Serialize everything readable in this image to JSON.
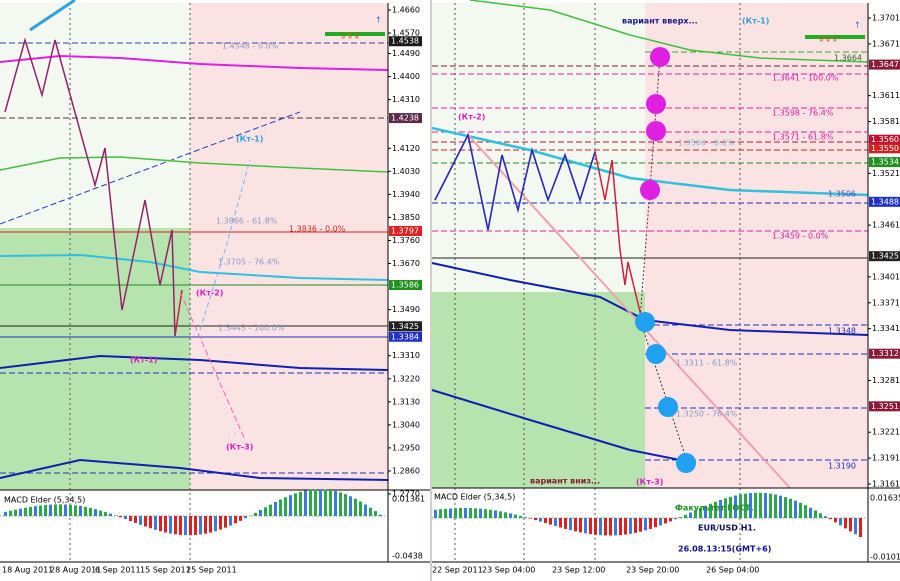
{
  "left": {
    "price_axis": [
      "1.4660",
      "1.4570",
      "1.4490",
      "1.4400",
      "1.4310",
      "1.4120",
      "1.4030",
      "1.3940",
      "1.3850",
      "1.3760",
      "1.3670",
      "1.3490",
      "1.3310",
      "1.3220",
      "1.3130",
      "1.3040",
      "1.2950",
      "1.2860",
      "1.2770"
    ],
    "price_markers": [
      {
        "label": "1.4538",
        "color": "#1a1a1a"
      },
      {
        "label": "1.4238",
        "color": "#5a2a4a"
      },
      {
        "label": "1.3797",
        "color": "#e02020"
      },
      {
        "label": "1.3586",
        "color": "#1f8f1f"
      },
      {
        "label": "1.3425",
        "color": "#222222"
      },
      {
        "label": "1.3384",
        "color": "#2030c0"
      }
    ],
    "annotations": [
      "1.4548 - 0.0%",
      "1.3866 - 61.8%",
      "1.3836 - 0.0%",
      "1.3705 - 76.4%",
      "1.3443 - 100.0%",
      "(Кт-1)",
      "(Кт-2)",
      "(Кт-1)",
      "(Кт-3)"
    ],
    "macd": {
      "title": "MACD Elder (5,34,5)",
      "levels": [
        "0.01361",
        "-0.0438"
      ]
    },
    "dates": [
      "18 Aug 2011",
      "28 Aug 2011",
      "6 Sep 2011",
      "15 Sep 2011",
      "25 Sep 2011"
    ]
  },
  "right": {
    "price_axis": [
      "1.3701",
      "1.3671",
      "1.3611",
      "1.3581",
      "1.3521",
      "1.3461",
      "1.3401",
      "1.3371",
      "1.3341",
      "1.3281",
      "1.3221",
      "1.3191",
      "1.3161"
    ],
    "price_markers": [
      {
        "label": "1.3647",
        "color": "#8a1a3a"
      },
      {
        "label": "1.3560",
        "color": "#c01030"
      },
      {
        "label": "1.3550",
        "color": "#d02020"
      },
      {
        "label": "1.3534",
        "color": "#1f8f1f"
      },
      {
        "label": "1.3488",
        "color": "#2030c0"
      },
      {
        "label": "1.3425",
        "color": "#222222"
      },
      {
        "label": "1.3312",
        "color": "#8a1a3a"
      },
      {
        "label": "1.3251",
        "color": "#8a1a3a"
      }
    ],
    "annotations": [
      "вариант вверх...",
      "(Кт-1)",
      "1.3664",
      "1.3641 - 100.0%",
      "1.3598 - 76.4%",
      "1.3571 - 61.8%",
      "1.3566 - 0.0%",
      "1.3506",
      "1.3459 - 0.0%",
      "(Кт-2)",
      "1.3348",
      "1.3311 - 61.8%",
      "1.3250 - 76.4%",
      "1.3190",
      "вариант вниз...",
      "(Кт-3)"
    ],
    "caption": [
      "Факультет ГОСТ.",
      "EUR/USD H1.",
      "26.08.13:15(GMT+6)"
    ],
    "macd": {
      "title": "MACD Elder (5,34,5)",
      "levels": [
        "0.01635",
        "-0.01012"
      ]
    },
    "dates": [
      "22 Sep 2011",
      "23 Sep 04:00",
      "23 Sep 12:00",
      "23 Sep 20:00",
      "26 Sep 04:00"
    ]
  }
}
